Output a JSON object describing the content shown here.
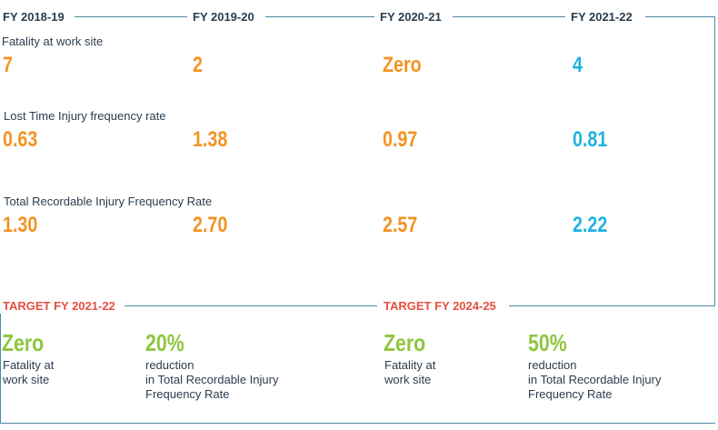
{
  "years": [
    "FY 2018-19",
    "FY 2019-20",
    "FY 2020-21",
    "FY 2021-22"
  ],
  "metrics": [
    {
      "label": "Fatality at work site",
      "values": [
        "7",
        "2",
        "Zero",
        "4"
      ]
    },
    {
      "label": "Lost Time Injury frequency rate",
      "values": [
        "0.63",
        "1.38",
        "0.97",
        "0.81"
      ]
    },
    {
      "label": "Total Recordable Injury Frequency Rate",
      "values": [
        "1.30",
        "2.70",
        "2.57",
        "2.22"
      ]
    }
  ],
  "targets": [
    {
      "title": "TARGET FY 2021-22",
      "items": [
        {
          "value": "Zero",
          "desc": "Fatality at\nwork site"
        },
        {
          "value": "20%",
          "desc": "reduction\nin Total Recordable Injury\nFrequency Rate"
        }
      ]
    },
    {
      "title": "TARGET FY 2024-25",
      "items": [
        {
          "value": "Zero",
          "desc": "Fatality at\nwork site"
        },
        {
          "value": "50%",
          "desc": "reduction\nin Total Recordable Injury\nFrequency Rate"
        }
      ]
    }
  ],
  "colors": {
    "line": "#4a89a4",
    "past_value": "#f39323",
    "current_value": "#1eb3e3",
    "target_value": "#8dc63f",
    "target_title": "#e6503f",
    "text": "#2b3d4f"
  }
}
